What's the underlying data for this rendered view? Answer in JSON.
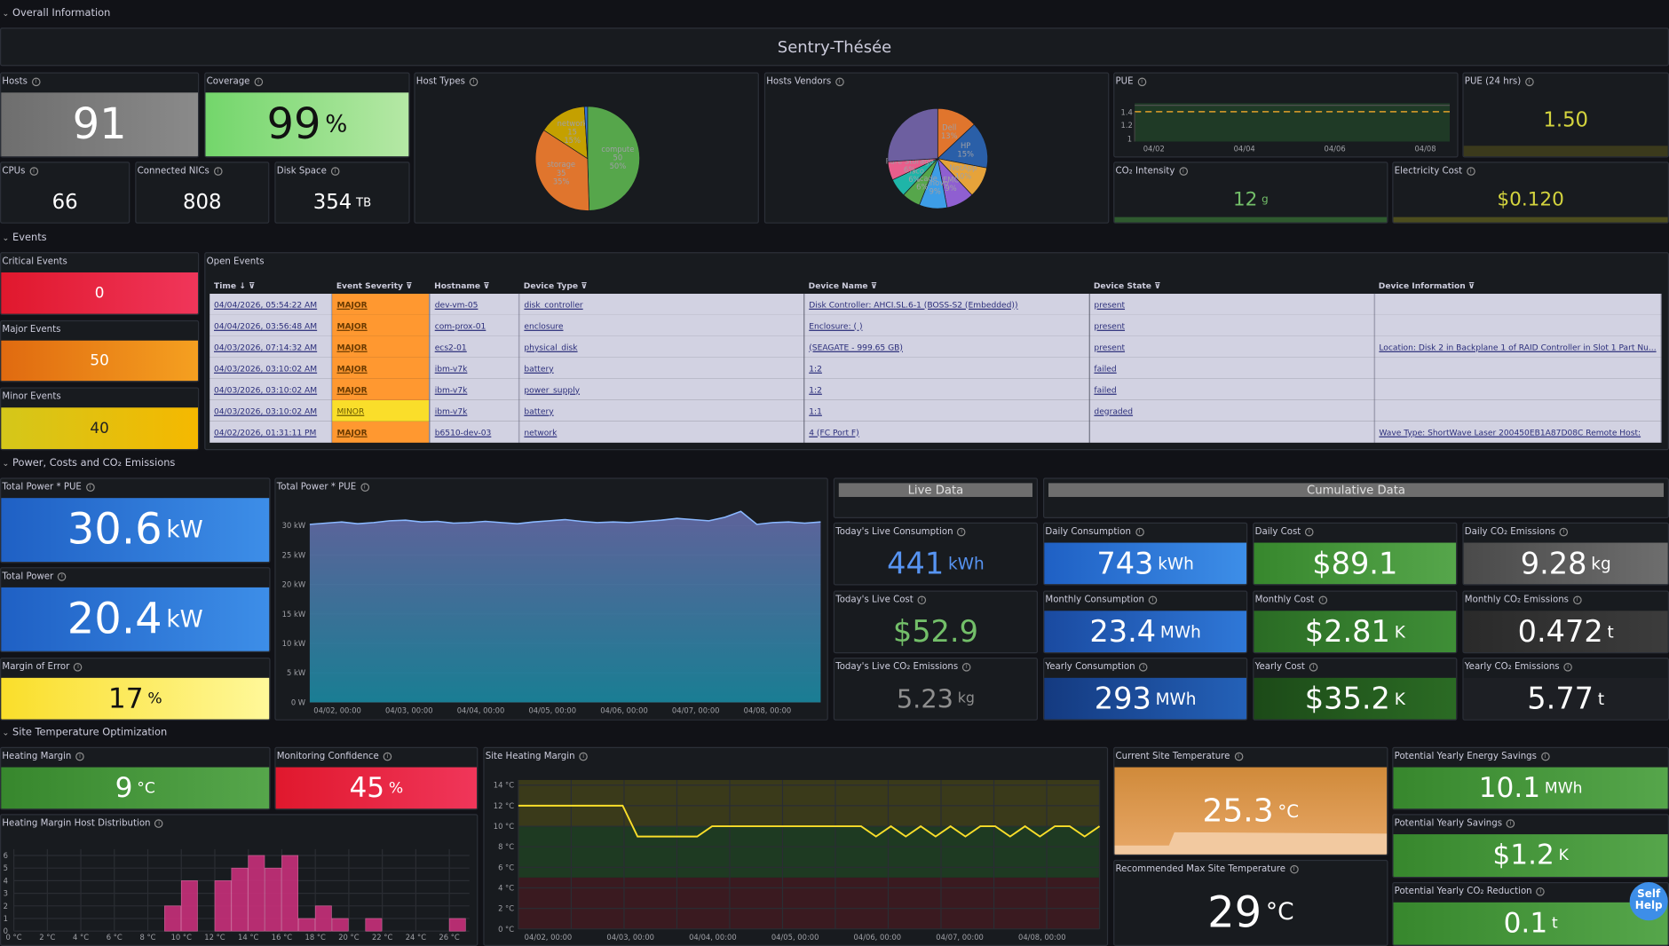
{
  "sections": {
    "overall": "Overall Information",
    "events": "Events",
    "power": "Power, Costs and CO₂ Emissions",
    "temp": "Site Temperature Optimization"
  },
  "site_title": "Sentry-Thésée",
  "overall": {
    "hosts": {
      "label": "Hosts",
      "value": "91"
    },
    "coverage": {
      "label": "Coverage",
      "value": "99",
      "unit": "%"
    },
    "cpus": {
      "label": "CPUs",
      "value": "66"
    },
    "nics": {
      "label": "Connected NICs",
      "value": "808"
    },
    "disk": {
      "label": "Disk Space",
      "value": "354",
      "unit": "TB"
    },
    "host_types": {
      "label": "Host Types"
    },
    "host_vendors": {
      "label": "Hosts Vendors"
    },
    "pue": {
      "label": "PUE",
      "y_ticks": [
        "1.4",
        "1.2",
        "1"
      ],
      "x_ticks": [
        "04/02",
        "04/04",
        "04/06",
        "04/08"
      ]
    },
    "pue24": {
      "label": "PUE (24 hrs)",
      "value": "1.50"
    },
    "co2": {
      "label": "CO₂ Intensity",
      "value": "12",
      "unit": "g"
    },
    "elec": {
      "label": "Electricity Cost",
      "value": "$0.120"
    }
  },
  "chart_data": [
    {
      "type": "pie",
      "title": "Host Types",
      "categories": [
        "compute",
        "storage",
        "network",
        "other"
      ],
      "values": [
        50,
        35,
        15,
        1
      ],
      "labels": [
        "compute\n50\n50%",
        "storage\n35\n35%",
        "network\n15\n15%"
      ],
      "colors": [
        "#56a64b",
        "#e0752d",
        "#c4a000",
        "#3274d9"
      ]
    },
    {
      "type": "pie",
      "title": "Hosts Vendors",
      "categories": [
        "Dell",
        "HP",
        "NetApp",
        "EMC",
        "Lenovo",
        "Brocade",
        "Cisco",
        "Pure Storage",
        "Others"
      ],
      "values": [
        13,
        15,
        10,
        9,
        9,
        6,
        6,
        6,
        26
      ],
      "labels": [
        "Dell\n13%",
        "HP\n15%",
        "NetApp\n10%",
        "EMC\n9%",
        "Lenovo\n9%",
        "Brocade\n6%",
        "Cisco\n6%",
        "Pure Storage\n6%"
      ],
      "colors": [
        "#e0752d",
        "#2a5fa8",
        "#e6a33a",
        "#8f5fd1",
        "#3d9de6",
        "#56a64b",
        "#1fb5a8",
        "#e85e8c",
        "#6d5fa0"
      ]
    },
    {
      "type": "line",
      "title": "Total Power * PUE",
      "x_ticks": [
        "04/02, 00:00",
        "04/03, 00:00",
        "04/04, 00:00",
        "04/05, 00:00",
        "04/06, 00:00",
        "04/07, 00:00",
        "04/08, 00:00"
      ],
      "y_ticks": [
        "30 kW",
        "25 kW",
        "20 kW",
        "15 kW",
        "10 kW",
        "5 kW",
        "0 W"
      ],
      "ylim": [
        0,
        32.5
      ],
      "values": [
        30.2,
        30.4,
        30.6,
        30.3,
        30.5,
        30.8,
        30.9,
        30.6,
        30.7,
        30.4,
        30.5,
        30.7,
        30.5,
        30.3,
        30.6,
        30.8,
        31.0,
        30.7,
        30.5,
        30.6,
        30.5,
        30.7,
        30.9,
        31.2,
        31.0,
        30.8,
        31.4,
        32.4,
        30.2,
        30.5,
        30.6,
        30.4,
        30.6
      ]
    },
    {
      "type": "line",
      "title": "Site Heating Margin",
      "x_ticks": [
        "04/02, 00:00",
        "04/03, 00:00",
        "04/04, 00:00",
        "04/05, 00:00",
        "04/06, 00:00",
        "04/07, 00:00",
        "04/08, 00:00"
      ],
      "y_ticks": [
        "14 °C",
        "12 °C",
        "10 °C",
        "8 °C",
        "6 °C",
        "4 °C",
        "2 °C",
        "0 °C"
      ],
      "ylim": [
        0,
        14.5
      ],
      "values": [
        12,
        12,
        12,
        12,
        12,
        12,
        12,
        12,
        9,
        9,
        9,
        9,
        9,
        10,
        10,
        10,
        10,
        10,
        10,
        10,
        10,
        10,
        10,
        10,
        9,
        10,
        9,
        10,
        9,
        10,
        9,
        10,
        10,
        9,
        10,
        9,
        10,
        10,
        9,
        10
      ]
    },
    {
      "type": "bar",
      "title": "Heating Margin Host Distribution",
      "categories": [
        "0 °C",
        "2 °C",
        "4 °C",
        "6 °C",
        "8 °C",
        "10 °C",
        "12 °C",
        "14 °C",
        "16 °C",
        "18 °C",
        "20 °C",
        "22 °C",
        "24 °C",
        "26 °C"
      ],
      "x_ticks": [
        "0 °C",
        "2 °C",
        "4 °C",
        "6 °C",
        "8 °C",
        "10 °C",
        "12 °C",
        "14 °C",
        "16 °C",
        "18 °C",
        "20 °C",
        "22 °C",
        "24 °C",
        "26 °C"
      ],
      "y_ticks": [
        "6",
        "5",
        "4",
        "3",
        "2",
        "1",
        "0"
      ],
      "ylim": [
        0,
        6.5
      ],
      "bins": [
        [
          9.5,
          2
        ],
        [
          10.5,
          4
        ],
        [
          12.5,
          4
        ],
        [
          13.5,
          5
        ],
        [
          14.5,
          6
        ],
        [
          15.5,
          5
        ],
        [
          16.5,
          6
        ],
        [
          17.5,
          1
        ],
        [
          18.5,
          2
        ],
        [
          19.5,
          1
        ],
        [
          21.5,
          1
        ],
        [
          26.5,
          1
        ]
      ]
    }
  ],
  "events": {
    "critical": {
      "label": "Critical Events",
      "value": "0"
    },
    "major": {
      "label": "Major Events",
      "value": "50"
    },
    "minor": {
      "label": "Minor Events",
      "value": "40"
    },
    "open": {
      "label": "Open Events",
      "headers": [
        "Time",
        "Event Severity",
        "Hostname",
        "Device Type",
        "Device Name",
        "Device State",
        "Device Information"
      ],
      "rows": [
        [
          "04/04/2026, 05:54:22 AM",
          "MAJOR",
          "dev-vm-05",
          "disk_controller",
          "Disk Controller: AHCI.SL.6-1 (BOSS-S2 (Embedded))",
          "present",
          ""
        ],
        [
          "04/04/2026, 03:56:48 AM",
          "MAJOR",
          "com-prox-01",
          "enclosure",
          "Enclosure: ( )",
          "present",
          ""
        ],
        [
          "04/03/2026, 07:14:32 AM",
          "MAJOR",
          "ecs2-01",
          "physical_disk",
          "(SEAGATE - 999.65 GB)",
          "present",
          "Location: Disk 2 in Backplane 1 of RAID Controller in Slot 1 Part Nu..."
        ],
        [
          "04/03/2026, 03:10:02 AM",
          "MAJOR",
          "ibm-v7k",
          "battery",
          "1:2",
          "failed",
          ""
        ],
        [
          "04/03/2026, 03:10:02 AM",
          "MAJOR",
          "ibm-v7k",
          "power_supply",
          "1:2",
          "failed",
          ""
        ],
        [
          "04/03/2026, 03:10:02 AM",
          "MINOR",
          "ibm-v7k",
          "battery",
          "1:1",
          "degraded",
          ""
        ],
        [
          "04/02/2026, 01:31:11 PM",
          "MAJOR",
          "b6510-dev-03",
          "network",
          "4 (FC Port F)",
          "",
          "Wave Type: ShortWave Laser 200450EB1A87D08C Remote Host:"
        ]
      ]
    }
  },
  "power": {
    "total_pue": {
      "label": "Total Power * PUE",
      "value": "30.6",
      "unit": "kW"
    },
    "total": {
      "label": "Total Power",
      "value": "20.4",
      "unit": "kW"
    },
    "margin": {
      "label": "Margin of Error",
      "value": "17",
      "unit": "%"
    },
    "chart_label": "Total Power * PUE",
    "live_header": "Live Data",
    "cum_header": "Cumulative Data",
    "live_cons": {
      "label": "Today's Live Consumption",
      "value": "441",
      "unit": "kWh"
    },
    "live_cost": {
      "label": "Today's Live Cost",
      "value": "$52.9"
    },
    "live_co2": {
      "label": "Today's Live CO₂ Emissions",
      "value": "5.23",
      "unit": "kg"
    },
    "daily_cons": {
      "label": "Daily Consumption",
      "value": "743",
      "unit": "kWh"
    },
    "daily_cost": {
      "label": "Daily Cost",
      "value": "$89.1"
    },
    "daily_co2": {
      "label": "Daily CO₂ Emissions",
      "value": "9.28",
      "unit": "kg"
    },
    "monthly_cons": {
      "label": "Monthly Consumption",
      "value": "23.4",
      "unit": "MWh"
    },
    "monthly_cost": {
      "label": "Monthly Cost",
      "value": "$2.81",
      "unit": "K"
    },
    "monthly_co2": {
      "label": "Monthly CO₂ Emissions",
      "value": "0.472",
      "unit": "t"
    },
    "yearly_cons": {
      "label": "Yearly Consumption",
      "value": "293",
      "unit": "MWh"
    },
    "yearly_cost": {
      "label": "Yearly Cost",
      "value": "$35.2",
      "unit": "K"
    },
    "yearly_co2": {
      "label": "Yearly CO₂ Emissions",
      "value": "5.77",
      "unit": "t"
    }
  },
  "temp": {
    "heating_margin": {
      "label": "Heating Margin",
      "value": "9",
      "unit": "°C"
    },
    "confidence": {
      "label": "Monitoring Confidence",
      "value": "45",
      "unit": "%"
    },
    "dist_label": "Heating Margin Host Distribution",
    "site_margin_label": "Site Heating Margin",
    "current": {
      "label": "Current Site Temperature",
      "value": "25.3",
      "unit": "°C"
    },
    "recommended": {
      "label": "Recommended Max Site Temperature",
      "value": "29",
      "unit": "°C"
    },
    "energy_savings": {
      "label": "Potential Yearly Energy Savings",
      "value": "10.1",
      "unit": "MWh"
    },
    "savings": {
      "label": "Potential Yearly Savings",
      "value": "$1.2",
      "unit": "K"
    },
    "co2_reduction": {
      "label": "Potential Yearly CO₂ Reduction",
      "value": "0.1",
      "unit": "t"
    }
  },
  "help_button": "Self Help"
}
